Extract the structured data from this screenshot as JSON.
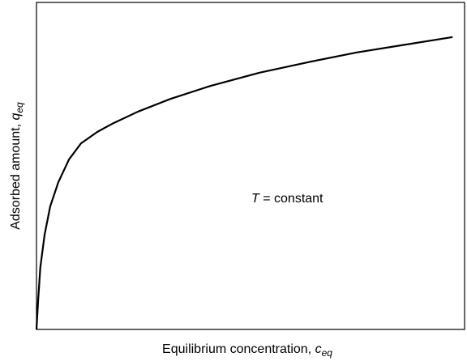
{
  "chart_data": {
    "type": "line",
    "x_label": {
      "text": "Equilibrium concentration, ",
      "symbol": "c",
      "subscript": "eq"
    },
    "y_label": {
      "text": "Adsorbed amount, ",
      "symbol": "q",
      "subscript": "eq"
    },
    "annotation": {
      "symbol": "T",
      "text": " = constant"
    },
    "xlim": [
      0,
      1
    ],
    "ylim": [
      0,
      1
    ],
    "series": [
      {
        "color": "#000000",
        "x": [
          0,
          0.004,
          0.009,
          0.019,
          0.032,
          0.051,
          0.076,
          0.104,
          0.142,
          0.18,
          0.237,
          0.313,
          0.407,
          0.521,
          0.634,
          0.748,
          0.862,
          0.972
        ],
        "values": [
          0,
          0.092,
          0.19,
          0.29,
          0.376,
          0.45,
          0.52,
          0.569,
          0.604,
          0.631,
          0.666,
          0.705,
          0.745,
          0.785,
          0.817,
          0.847,
          0.871,
          0.894
        ]
      }
    ]
  }
}
